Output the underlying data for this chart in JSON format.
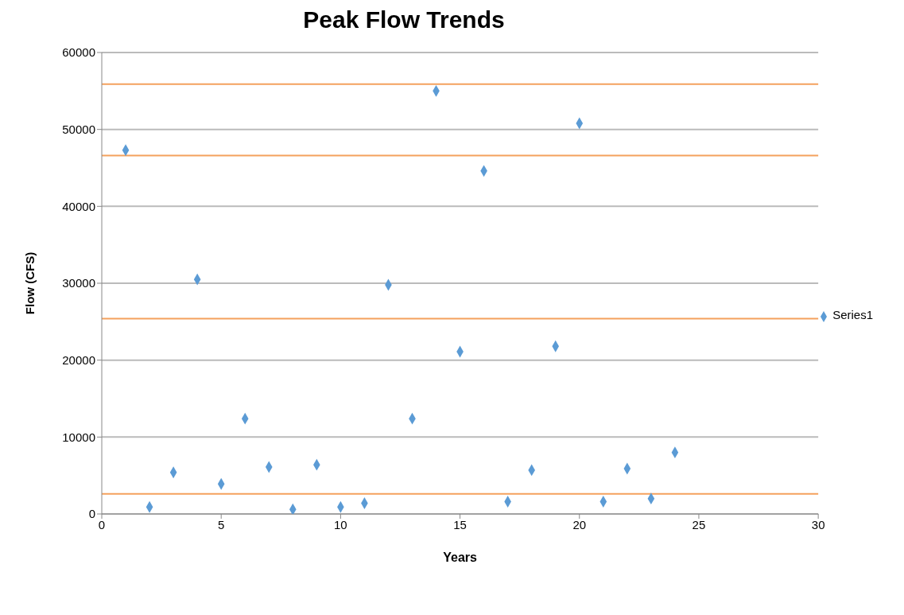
{
  "chart_data": {
    "type": "scatter",
    "title": "Peak Flow Trends",
    "xlabel": "Years",
    "ylabel": "Flow (CFS)",
    "x": [
      1,
      2,
      3,
      4,
      5,
      6,
      7,
      8,
      9,
      10,
      11,
      12,
      13,
      14,
      15,
      16,
      17,
      18,
      19,
      20,
      21,
      22,
      23,
      24
    ],
    "series": [
      {
        "name": "Series1",
        "color": "#5b9bd5",
        "values": [
          47300,
          900,
          5400,
          30500,
          3900,
          12400,
          6100,
          600,
          6400,
          900,
          1400,
          29800,
          12400,
          55000,
          21100,
          44600,
          1600,
          5700,
          21800,
          50800,
          1600,
          5900,
          2000,
          8000
        ]
      }
    ],
    "xlim": [
      0,
      30
    ],
    "xticks": [
      0,
      5,
      10,
      15,
      20,
      25,
      30
    ],
    "ylim": [
      0,
      60000
    ],
    "yticks": [
      0,
      10000,
      20000,
      30000,
      40000,
      50000,
      60000
    ],
    "ref_lines": [
      {
        "axis": "y",
        "value": 55900,
        "color": "#f4a15d"
      },
      {
        "axis": "y",
        "value": 46600,
        "color": "#f4a15d"
      },
      {
        "axis": "y",
        "value": 25400,
        "color": "#f4a15d"
      },
      {
        "axis": "y",
        "value": 2600,
        "color": "#f4a15d"
      }
    ],
    "grid": "y",
    "legend": "right",
    "marker": "diamond"
  }
}
